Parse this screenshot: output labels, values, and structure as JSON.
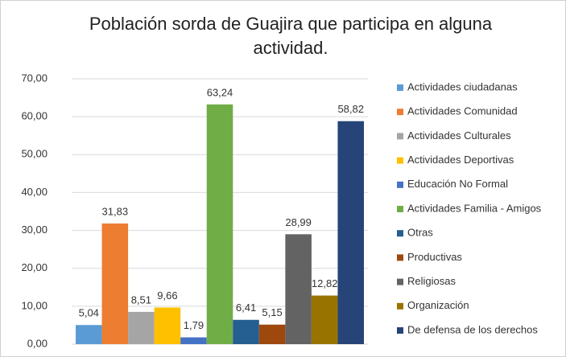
{
  "chart_data": {
    "type": "bar",
    "title": "Población sorda de Guajira que participa en alguna actividad.",
    "categories": [
      null
    ],
    "series": [
      {
        "name": "Actividades ciudadanas",
        "color": "#5b9bd5",
        "values": [
          5.04
        ],
        "value_labels": [
          "5,04"
        ]
      },
      {
        "name": "Actividades Comunidad",
        "color": "#ed7d31",
        "values": [
          31.83
        ],
        "value_labels": [
          "31,83"
        ]
      },
      {
        "name": "Actividades Culturales",
        "color": "#a5a5a5",
        "values": [
          8.51
        ],
        "value_labels": [
          "8,51"
        ]
      },
      {
        "name": "Actividades Deportivas",
        "color": "#ffc000",
        "values": [
          9.66
        ],
        "value_labels": [
          "9,66"
        ]
      },
      {
        "name": "Educación No Formal",
        "color": "#4472c4",
        "values": [
          1.79
        ],
        "value_labels": [
          "1,79"
        ]
      },
      {
        "name": "Actividades Familia - Amigos",
        "color": "#70ad47",
        "values": [
          63.24
        ],
        "value_labels": [
          "63,24"
        ]
      },
      {
        "name": "Otras",
        "color": "#255e91",
        "values": [
          6.41
        ],
        "value_labels": [
          "6,41"
        ]
      },
      {
        "name": "Productivas",
        "color": "#9e480e",
        "values": [
          5.15
        ],
        "value_labels": [
          "5,15"
        ]
      },
      {
        "name": "Religiosas",
        "color": "#636363",
        "values": [
          28.99
        ],
        "value_labels": [
          "28,99"
        ]
      },
      {
        "name": "Organización",
        "color": "#997300",
        "values": [
          12.82
        ],
        "value_labels": [
          "12,82"
        ]
      },
      {
        "name": "De defensa de los derechos",
        "color": "#264478",
        "values": [
          58.82
        ],
        "value_labels": [
          "58,82"
        ]
      }
    ],
    "ylim": [
      0,
      70
    ],
    "yticks": [
      {
        "value": 0,
        "label": "0,00"
      },
      {
        "value": 10,
        "label": "10,00"
      },
      {
        "value": 20,
        "label": "20,00"
      },
      {
        "value": 30,
        "label": "30,00"
      },
      {
        "value": 40,
        "label": "40,00"
      },
      {
        "value": 50,
        "label": "50,00"
      },
      {
        "value": 60,
        "label": "60,00"
      },
      {
        "value": 70,
        "label": "70,00"
      }
    ],
    "grid": true,
    "legend": "right"
  }
}
